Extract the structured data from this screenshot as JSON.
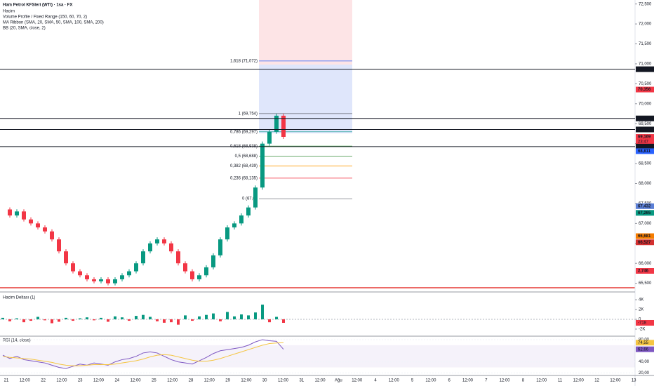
{
  "header": {
    "symbol": "Ham Petrol KFSleri (WTI) · 1sa · FX",
    "indicators": [
      "Hacim",
      "Volume Profile / Fixed Range (150, 60, 70, 2)",
      "MA Ribbon (SMA, 20, SMA, 50, SMA, 100, SMA, 200)",
      "BB (20, SMA, close, 2)"
    ]
  },
  "chart_data": [
    {
      "type": "candlestick",
      "ylim": [
        65.3,
        72.6
      ],
      "yticks": [
        {
          "value": 65.5,
          "label": "65,500"
        },
        {
          "value": 66,
          "label": "66,000"
        },
        {
          "value": 66.5,
          "label": "66,500"
        },
        {
          "value": 67,
          "label": "67,000"
        },
        {
          "value": 67.5,
          "label": "67,500"
        },
        {
          "value": 68,
          "label": "68,000"
        },
        {
          "value": 68.5,
          "label": "68,500"
        },
        {
          "value": 69,
          "label": "69,000"
        },
        {
          "value": 69.5,
          "label": "69,500"
        },
        {
          "value": 70,
          "label": "70,000"
        },
        {
          "value": 70.5,
          "label": "70,500"
        },
        {
          "value": 71,
          "label": "71,000"
        },
        {
          "value": 71.5,
          "label": "71,500"
        },
        {
          "value": 72,
          "label": "72,000"
        },
        {
          "value": 72.5,
          "label": "72,500"
        }
      ],
      "values": [
        67.35,
        67.2,
        67.3,
        67.1,
        67.0,
        66.9,
        66.8,
        66.6,
        66.3,
        66.0,
        65.8,
        65.7,
        65.6,
        65.55,
        65.6,
        65.5,
        65.6,
        65.7,
        65.8,
        66.0,
        66.3,
        66.5,
        66.6,
        66.5,
        66.3,
        66.0,
        65.8,
        65.6,
        65.7,
        65.9,
        66.2,
        66.6,
        66.9,
        67.0,
        67.2,
        67.4,
        67.9,
        69.0,
        69.3,
        69.7,
        69.17
      ],
      "up_color": "#089981",
      "down_color": "#f23645",
      "fib_levels": [
        {
          "value": 71.072,
          "label": "1,618 (71,072)",
          "color": "#2962ff"
        },
        {
          "value": 69.754,
          "label": "1 (69,754)",
          "color": "#787b86"
        },
        {
          "value": 69.297,
          "label": "0,786 (69,297)",
          "color": "#26a69a"
        },
        {
          "value": 68.938,
          "label": "0,618 (68,938)",
          "color": "#4caf50"
        },
        {
          "value": 68.688,
          "label": "0,5 (68,688)",
          "color": "#388e3c"
        },
        {
          "value": 68.439,
          "label": "0,382 (68,439)",
          "color": "#ff9800"
        },
        {
          "value": 68.135,
          "label": "0,236 (68,135)",
          "color": "#f23645"
        },
        {
          "value": 67.62,
          "label": "0 (67,62",
          "color": "#787b86"
        }
      ],
      "price_tags": [
        {
          "value": 70.865,
          "label": "70,865",
          "color": "#131722",
          "line": true
        },
        {
          "value": 70.356,
          "label": "70,356",
          "color": "#f23645"
        },
        {
          "value": 69.632,
          "label": "69,632",
          "color": "#131722",
          "line": true
        },
        {
          "value": 69.355,
          "label": "69,355",
          "color": "#131722",
          "line": true
        },
        {
          "value": 69.169,
          "label": "69,169",
          "color": "#f23645",
          "sub": "23:47"
        },
        {
          "value": 68.926,
          "label": "68,926",
          "color": "#131722",
          "line": true
        },
        {
          "value": 68.811,
          "label": "68,811",
          "color": "#2962ff"
        },
        {
          "value": 67.432,
          "label": "67,432",
          "color": "#5b7fd6"
        },
        {
          "value": 67.265,
          "label": "67,265",
          "color": "#089981"
        },
        {
          "value": 66.681,
          "label": "66,681",
          "color": "#f57c00"
        },
        {
          "value": 66.527,
          "label": "66,527",
          "color": "#d32f2f"
        }
      ],
      "volume_tag": {
        "label": "2,746",
        "color": "#f23645"
      }
    },
    {
      "type": "bar",
      "title": "Hacim Deltası (1)",
      "ylim": [
        -3300,
        5300
      ],
      "yticks": [
        {
          "value": 4000,
          "label": "4K"
        },
        {
          "value": 2000,
          "label": "2K"
        },
        {
          "value": 0,
          "label": "0"
        },
        {
          "value": -2000,
          "label": "-2K"
        }
      ],
      "values": [
        300,
        -400,
        200,
        -600,
        -300,
        500,
        -200,
        -800,
        -500,
        300,
        -300,
        200,
        400,
        -200,
        300,
        -500,
        600,
        400,
        -300,
        700,
        900,
        500,
        -400,
        -700,
        -600,
        -1100,
        800,
        -300,
        600,
        900,
        1200,
        -400,
        1500,
        600,
        1000,
        800,
        1400,
        3000,
        -600,
        500,
        -718
      ],
      "value_labels": [
        null,
        null,
        null,
        null,
        null,
        null,
        null,
        null,
        null,
        null,
        null,
        null,
        null,
        null,
        null,
        null,
        null,
        null,
        null,
        null,
        null,
        null,
        null,
        null,
        null,
        null,
        null,
        null,
        null,
        null,
        null,
        null,
        null,
        null,
        null,
        null,
        null,
        null,
        null,
        null,
        "-718"
      ],
      "up_color": "#089981",
      "down_color": "#f23645"
    },
    {
      "type": "line",
      "title": "RSI (14, close)",
      "ylim": [
        18,
        85
      ],
      "yticks": [
        {
          "value": 80,
          "label": "80,00"
        },
        {
          "value": 40,
          "label": "40,00"
        },
        {
          "value": 20,
          "label": "20,00"
        }
      ],
      "series": [
        {
          "name": "RSI",
          "color": "#7e57c2",
          "values": [
            52,
            46,
            50,
            44,
            42,
            40,
            38,
            34,
            30,
            28,
            32,
            36,
            34,
            38,
            36,
            34,
            40,
            44,
            46,
            50,
            56,
            58,
            56,
            50,
            44,
            40,
            38,
            36,
            42,
            48,
            55,
            60,
            62,
            64,
            66,
            70,
            76,
            80,
            78,
            77,
            62.66
          ],
          "value_labels": [
            null,
            null,
            null,
            null,
            null,
            null,
            null,
            null,
            null,
            null,
            null,
            null,
            null,
            null,
            null,
            null,
            null,
            null,
            null,
            null,
            null,
            null,
            null,
            null,
            null,
            null,
            null,
            null,
            null,
            null,
            null,
            null,
            null,
            null,
            null,
            null,
            null,
            null,
            null,
            null,
            "62,66"
          ]
        },
        {
          "name": "RSI MA",
          "color": "#f5c542",
          "values": [
            50,
            48,
            47,
            46,
            45,
            43,
            41,
            39,
            36,
            34,
            33,
            33,
            34,
            35,
            35,
            35,
            36,
            38,
            40,
            42,
            45,
            49,
            52,
            53,
            52,
            49,
            46,
            43,
            41,
            41,
            43,
            46,
            50,
            54,
            58,
            62,
            66,
            70,
            73,
            74,
            74.55
          ],
          "value_labels": [
            null,
            null,
            null,
            null,
            null,
            null,
            null,
            null,
            null,
            null,
            null,
            null,
            null,
            null,
            null,
            null,
            null,
            null,
            null,
            null,
            null,
            null,
            null,
            null,
            null,
            null,
            null,
            null,
            null,
            null,
            null,
            null,
            null,
            null,
            null,
            null,
            null,
            null,
            null,
            null,
            "74,55"
          ]
        }
      ]
    }
  ],
  "time_axis": [
    "21",
    "12:00",
    "22",
    "12:00",
    "23",
    "12:00",
    "24",
    "12:00",
    "25",
    "12:00",
    "28",
    "12:00",
    "29",
    "12:00",
    "30",
    "12:00",
    "31",
    "12:00",
    "Ağu",
    "12:00",
    "4",
    "12:00",
    "5",
    "12:00",
    "6",
    "12:00",
    "7",
    "12:00",
    "8",
    "12:00",
    "11",
    "12:00",
    "12",
    "12:00",
    "13"
  ]
}
